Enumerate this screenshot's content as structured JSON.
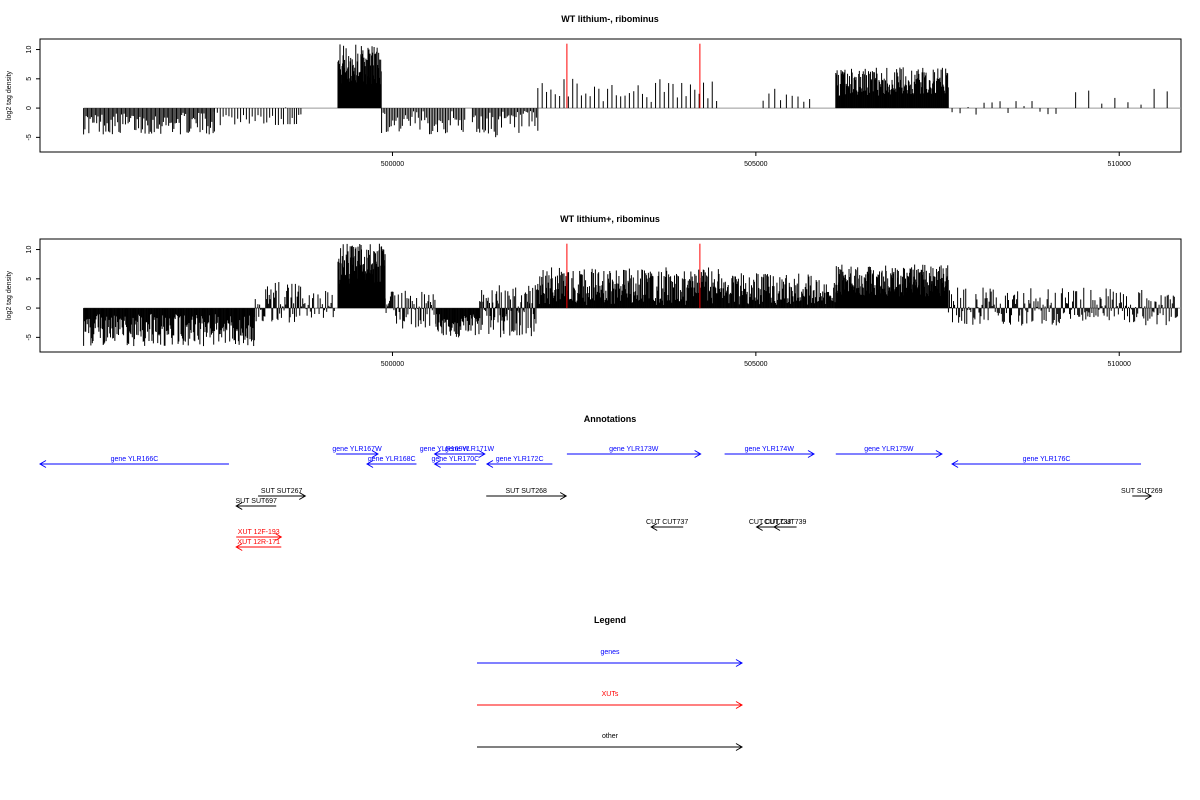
{
  "colors": {
    "gene": "#0000ff",
    "xut": "#ff0000",
    "other": "#000000",
    "marker": "#ff0000",
    "bar": "#000000",
    "baseline": "#999999"
  },
  "x_range": [
    495150,
    510850
  ],
  "x_ticks": [
    500000,
    505000,
    510000
  ],
  "markers_x": [
    502400,
    504230
  ],
  "chart_data": [
    {
      "type": "bar",
      "title": "WT lithium-, ribominus",
      "ylabel": "log2 tag density",
      "ylim": [
        -7.5,
        11.8
      ],
      "y_ticks": [
        -5,
        0,
        5,
        10
      ],
      "x_ticks": [
        500000,
        505000,
        510000
      ],
      "segments": [
        {
          "x": [
            495750,
            497550
          ],
          "h": [
            -4.5,
            -0.8
          ],
          "step": 18
        },
        {
          "x": [
            497550,
            498500
          ],
          "h": [
            -3,
            -0.5
          ],
          "step": 40
        },
        {
          "x": [
            498500,
            498750
          ],
          "h": [
            -3,
            0.3
          ],
          "step": 30
        },
        {
          "x": [
            499250,
            499850
          ],
          "h": [
            4,
            11
          ],
          "step": 7
        },
        {
          "x": [
            499850,
            501000
          ],
          "h": [
            -4.5,
            -0.5
          ],
          "step": 22
        },
        {
          "x": [
            501100,
            502000
          ],
          "h": [
            -5,
            -0.5
          ],
          "step": 20
        },
        {
          "x": [
            502000,
            504500
          ],
          "h": [
            0.8,
            5
          ],
          "step": 60
        },
        {
          "x": [
            505100,
            505800
          ],
          "h": [
            0.5,
            3.5
          ],
          "step": 80
        },
        {
          "x": [
            506100,
            507650
          ],
          "h": [
            2,
            7
          ],
          "step": 9
        },
        {
          "x": [
            507700,
            509200
          ],
          "h": [
            -1.5,
            1.5
          ],
          "step": 110
        },
        {
          "x": [
            509400,
            510800
          ],
          "h": [
            0.5,
            3.5
          ],
          "step": 180
        }
      ],
      "marker_height": 11
    },
    {
      "type": "bar",
      "title": "WT lithium+, ribominus",
      "ylabel": "log2 tag density",
      "ylim": [
        -7.5,
        11.8
      ],
      "y_ticks": [
        -5,
        0,
        5,
        10
      ],
      "x_ticks": [
        500000,
        505000,
        510000
      ],
      "segments": [
        {
          "x": [
            495750,
            498100
          ],
          "h": [
            -6.5,
            -1
          ],
          "step": 10
        },
        {
          "x": [
            498100,
            498750
          ],
          "h": [
            -3,
            4.5
          ],
          "step": 12
        },
        {
          "x": [
            498750,
            499200
          ],
          "h": [
            -2,
            3
          ],
          "step": 15
        },
        {
          "x": [
            499250,
            499900
          ],
          "h": [
            4,
            11
          ],
          "step": 6
        },
        {
          "x": [
            499900,
            500600
          ],
          "h": [
            -4,
            3
          ],
          "step": 12
        },
        {
          "x": [
            500600,
            501200
          ],
          "h": [
            -5,
            -1
          ],
          "step": 10
        },
        {
          "x": [
            501200,
            502000
          ],
          "h": [
            -5,
            4
          ],
          "step": 9
        },
        {
          "x": [
            502000,
            504500
          ],
          "h": [
            0.5,
            7
          ],
          "step": 9
        },
        {
          "x": [
            504500,
            506100
          ],
          "h": [
            0.5,
            6
          ],
          "step": 10
        },
        {
          "x": [
            506100,
            507650
          ],
          "h": [
            2,
            7.5
          ],
          "step": 7
        },
        {
          "x": [
            507650,
            510800
          ],
          "h": [
            -3,
            3.5
          ],
          "step": 14
        }
      ],
      "marker_height": 11
    }
  ],
  "annotations": {
    "title": "Annotations",
    "rows": [
      {
        "row": 0,
        "cls": "gene",
        "label": "gene YLR167W",
        "x1": 499225,
        "x2": 499800,
        "dir": "right"
      },
      {
        "row": 0,
        "cls": "gene",
        "label": "gene YLR169W",
        "x1": 500580,
        "x2": 500850,
        "dir": "left"
      },
      {
        "row": 0,
        "cls": "gene",
        "label": "gene YLR171W",
        "x1": 500850,
        "x2": 501270,
        "dir": "right"
      },
      {
        "row": 0,
        "cls": "gene",
        "label": "gene YLR173W",
        "x1": 502400,
        "x2": 504240,
        "dir": "right"
      },
      {
        "row": 0,
        "cls": "gene",
        "label": "gene YLR174W",
        "x1": 504570,
        "x2": 505800,
        "dir": "right"
      },
      {
        "row": 0,
        "cls": "gene",
        "label": "gene YLR175W",
        "x1": 506100,
        "x2": 507560,
        "dir": "right"
      },
      {
        "row": 1,
        "cls": "gene",
        "label": "gene YLR166C",
        "x1": 495150,
        "x2": 497750,
        "dir": "left"
      },
      {
        "row": 1,
        "cls": "gene",
        "label": "gene YLR168C",
        "x1": 499650,
        "x2": 500330,
        "dir": "left"
      },
      {
        "row": 1,
        "cls": "gene",
        "label": "gene YLR170C",
        "x1": 500580,
        "x2": 501150,
        "dir": "left"
      },
      {
        "row": 1,
        "cls": "gene",
        "label": "gene YLR172C",
        "x1": 501300,
        "x2": 502200,
        "dir": "left"
      },
      {
        "row": 1,
        "cls": "gene",
        "label": "gene YLR176C",
        "x1": 507700,
        "x2": 510300,
        "dir": "left"
      },
      {
        "row": 2,
        "cls": "other",
        "label": "SUT SUT267",
        "x1": 498150,
        "x2": 498800,
        "dir": "right"
      },
      {
        "row": 2,
        "cls": "other",
        "label": "SUT SUT268",
        "x1": 501290,
        "x2": 502390,
        "dir": "right"
      },
      {
        "row": 2,
        "cls": "other",
        "label": "SUT SUT269",
        "x1": 510180,
        "x2": 510440,
        "dir": "right"
      },
      {
        "row": 3,
        "cls": "other",
        "label": "SUT SUT697",
        "x1": 497850,
        "x2": 498400,
        "dir": "left"
      },
      {
        "row": 4,
        "cls": "other",
        "label": "CUT CUT737",
        "x1": 503560,
        "x2": 504000,
        "dir": "left"
      },
      {
        "row": 4,
        "cls": "other",
        "label": "CUT CUT738",
        "x1": 505010,
        "x2": 505380,
        "dir": "left"
      },
      {
        "row": 4,
        "cls": "other",
        "label": "CUT CUT739",
        "x1": 505250,
        "x2": 505560,
        "dir": "left"
      },
      {
        "row": 5,
        "cls": "xut",
        "label": "XUT 12F-193",
        "x1": 497850,
        "x2": 498470,
        "dir": "right"
      },
      {
        "row": 6,
        "cls": "xut",
        "label": "XUT 12R-171",
        "x1": 497850,
        "x2": 498470,
        "dir": "left"
      }
    ]
  },
  "legend": {
    "title": "Legend",
    "items": [
      {
        "label": "genes",
        "cls": "gene"
      },
      {
        "label": "XUTs",
        "cls": "xut"
      },
      {
        "label": "other",
        "cls": "other"
      }
    ]
  }
}
